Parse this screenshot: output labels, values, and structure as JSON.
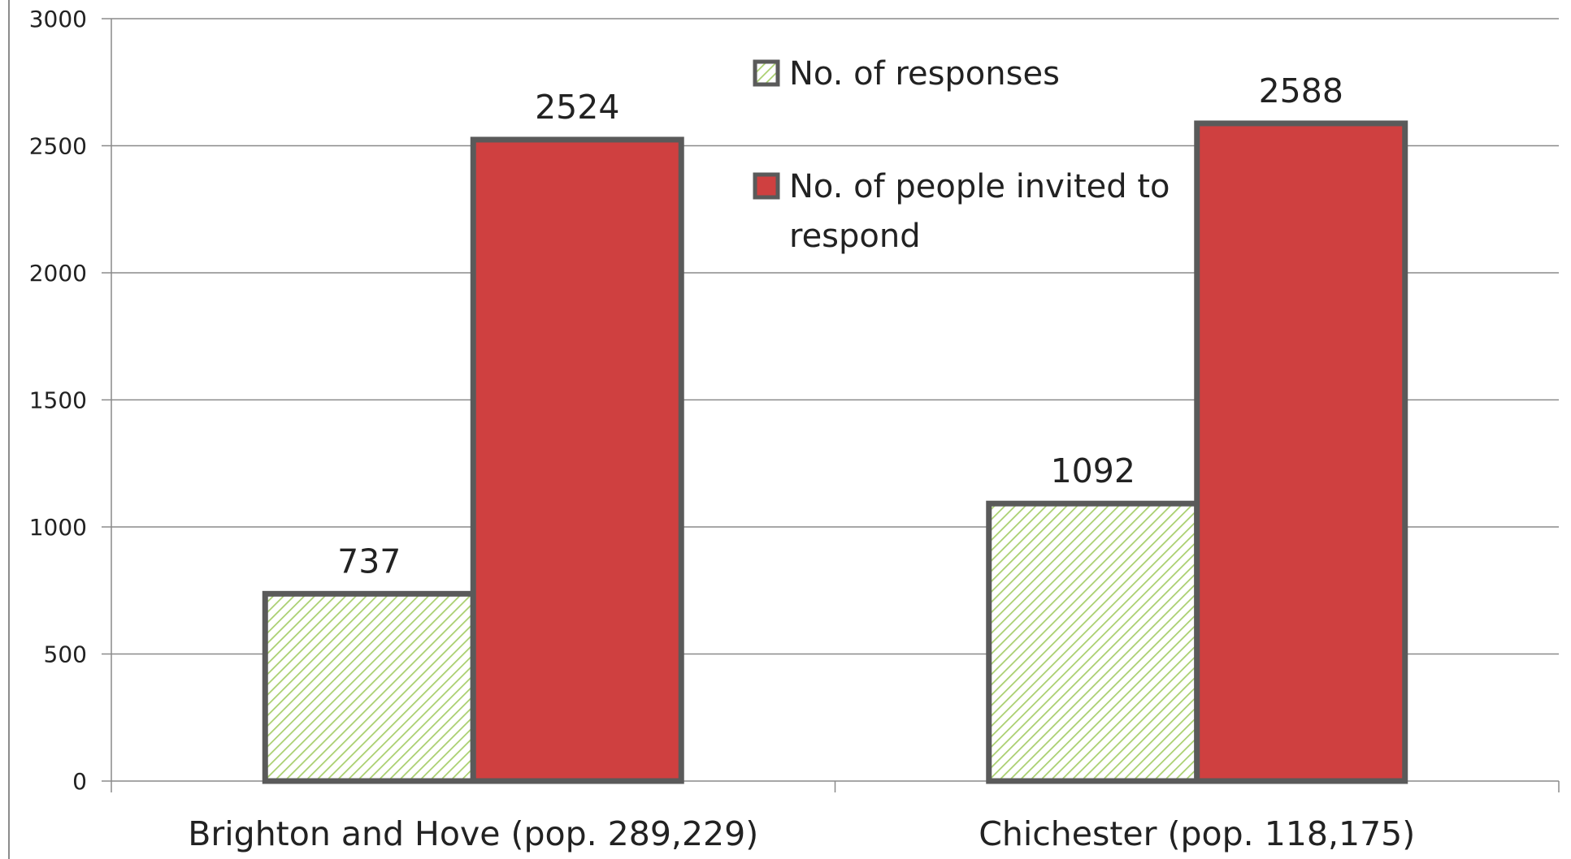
{
  "chart_data": {
    "type": "bar",
    "title": "",
    "xlabel": "",
    "ylabel": "",
    "categories": [
      "Brighton and Hove (pop. 289,229)",
      "Chichester (pop. 118,175)"
    ],
    "series": [
      {
        "name": "No. of responses",
        "values": [
          737,
          1092
        ],
        "fill": "hatch",
        "hatch_color": "#a9cf6e",
        "border_color": "#5a5a5a"
      },
      {
        "name": "No. of people invited to respond",
        "values": [
          2524,
          2588
        ],
        "fill": "solid",
        "color": "#cf4040",
        "border_color": "#5a5a5a"
      }
    ],
    "ylim": [
      0,
      3000
    ],
    "yticks": [
      0,
      500,
      1000,
      1500,
      2000,
      2500,
      3000
    ],
    "grid": true,
    "legend_position": "top-center",
    "data_labels": true
  }
}
